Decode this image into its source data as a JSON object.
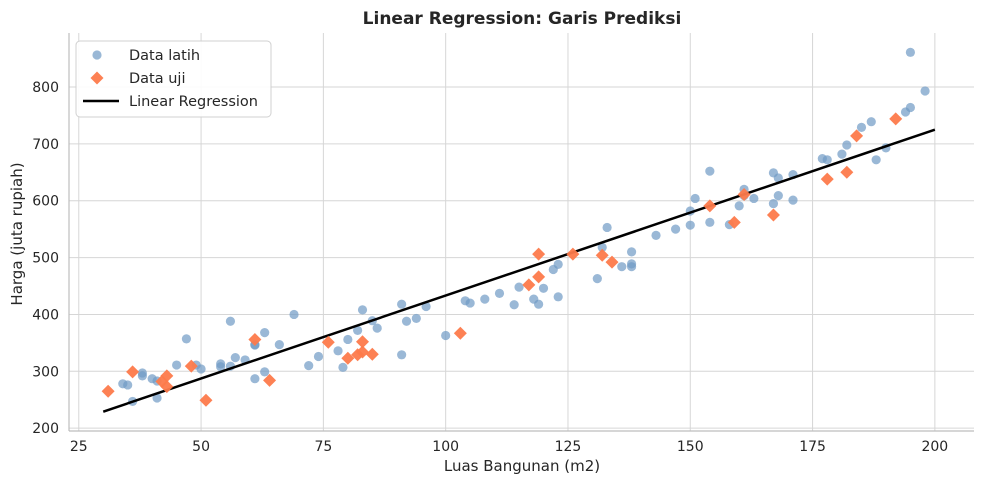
{
  "chart_data": {
    "type": "scatter",
    "title": "Linear Regression: Garis Prediksi",
    "xlabel": "Luas Bangunan (m2)",
    "ylabel": "Harga (juta rupiah)",
    "xlim": [
      23,
      208
    ],
    "ylim": [
      195,
      895
    ],
    "xticks": [
      25,
      50,
      75,
      100,
      125,
      150,
      175,
      200
    ],
    "yticks": [
      200,
      300,
      400,
      500,
      600,
      700,
      800
    ],
    "grid": true,
    "legend_position": "top-left",
    "colors": {
      "train": "#6f9ac4",
      "test": "#fd7a4b",
      "line": "#000000"
    },
    "series": [
      {
        "name": "Data latih",
        "marker": "circle",
        "points": [
          [
            34,
            278
          ],
          [
            35,
            276
          ],
          [
            36,
            247
          ],
          [
            38,
            297
          ],
          [
            38,
            292
          ],
          [
            40,
            287
          ],
          [
            41,
            253
          ],
          [
            41,
            283
          ],
          [
            45,
            311
          ],
          [
            47,
            357
          ],
          [
            49,
            311
          ],
          [
            50,
            304
          ],
          [
            54,
            308
          ],
          [
            54,
            313
          ],
          [
            56,
            388
          ],
          [
            56,
            309
          ],
          [
            57,
            324
          ],
          [
            59,
            320
          ],
          [
            61,
            287
          ],
          [
            61,
            347
          ],
          [
            61,
            346
          ],
          [
            63,
            299
          ],
          [
            63,
            368
          ],
          [
            66,
            347
          ],
          [
            69,
            400
          ],
          [
            72,
            310
          ],
          [
            74,
            326
          ],
          [
            78,
            336
          ],
          [
            79,
            307
          ],
          [
            80,
            356
          ],
          [
            82,
            372
          ],
          [
            83,
            408
          ],
          [
            85,
            389
          ],
          [
            86,
            376
          ],
          [
            91,
            418
          ],
          [
            91,
            329
          ],
          [
            92,
            388
          ],
          [
            94,
            393
          ],
          [
            96,
            414
          ],
          [
            100,
            363
          ],
          [
            104,
            424
          ],
          [
            105,
            420
          ],
          [
            108,
            427
          ],
          [
            111,
            437
          ],
          [
            114,
            417
          ],
          [
            115,
            448
          ],
          [
            118,
            427
          ],
          [
            119,
            418
          ],
          [
            120,
            446
          ],
          [
            122,
            479
          ],
          [
            123,
            431
          ],
          [
            123,
            488
          ],
          [
            131,
            463
          ],
          [
            132,
            518
          ],
          [
            133,
            553
          ],
          [
            136,
            484
          ],
          [
            138,
            484
          ],
          [
            138,
            489
          ],
          [
            138,
            510
          ],
          [
            143,
            539
          ],
          [
            147,
            550
          ],
          [
            150,
            557
          ],
          [
            150,
            582
          ],
          [
            151,
            604
          ],
          [
            154,
            562
          ],
          [
            154,
            652
          ],
          [
            158,
            558
          ],
          [
            160,
            591
          ],
          [
            161,
            620
          ],
          [
            161,
            609
          ],
          [
            163,
            604
          ],
          [
            167,
            595
          ],
          [
            167,
            649
          ],
          [
            168,
            609
          ],
          [
            168,
            640
          ],
          [
            171,
            601
          ],
          [
            171,
            646
          ],
          [
            177,
            674
          ],
          [
            178,
            672
          ],
          [
            181,
            682
          ],
          [
            182,
            698
          ],
          [
            185,
            729
          ],
          [
            187,
            739
          ],
          [
            188,
            672
          ],
          [
            190,
            693
          ],
          [
            194,
            756
          ],
          [
            195,
            764
          ],
          [
            195,
            861
          ],
          [
            198,
            793
          ]
        ]
      },
      {
        "name": "Data uji",
        "marker": "diamond",
        "points": [
          [
            31,
            265
          ],
          [
            36,
            299
          ],
          [
            42,
            282
          ],
          [
            43,
            273
          ],
          [
            43,
            292
          ],
          [
            48,
            309
          ],
          [
            51,
            249
          ],
          [
            61,
            356
          ],
          [
            64,
            284
          ],
          [
            76,
            351
          ],
          [
            80,
            323
          ],
          [
            82,
            329
          ],
          [
            83,
            334
          ],
          [
            83,
            352
          ],
          [
            85,
            330
          ],
          [
            103,
            367
          ],
          [
            117,
            452
          ],
          [
            119,
            506
          ],
          [
            119,
            466
          ],
          [
            126,
            506
          ],
          [
            132,
            504
          ],
          [
            134,
            492
          ],
          [
            154,
            591
          ],
          [
            159,
            562
          ],
          [
            161,
            611
          ],
          [
            167,
            575
          ],
          [
            178,
            638
          ],
          [
            182,
            650
          ],
          [
            184,
            714
          ],
          [
            192,
            744
          ]
        ]
      },
      {
        "name": "Linear Regression",
        "type": "line",
        "points": [
          [
            30,
            229
          ],
          [
            200,
            725
          ]
        ]
      }
    ]
  }
}
